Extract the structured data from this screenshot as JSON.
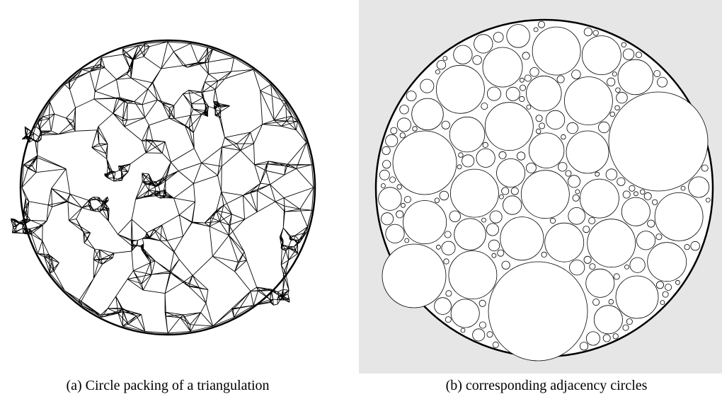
{
  "figure": {
    "panels": [
      {
        "caption": "(a) Circle packing of a triangulation"
      },
      {
        "caption": "(b) corresponding adjacency circles"
      }
    ]
  }
}
